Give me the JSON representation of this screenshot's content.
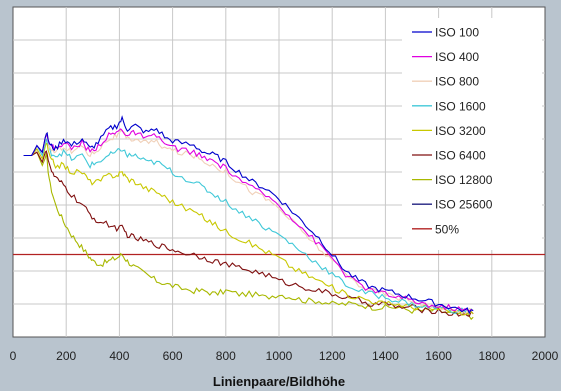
{
  "chart_data": {
    "type": "line",
    "title": "",
    "xlabel": "Linienpaare/Bildhöhe",
    "ylabel": "",
    "xlim": [
      0,
      2000
    ],
    "ylim": [
      0,
      1
    ],
    "x_ticks": [
      "0",
      "200",
      "400",
      "600",
      "800",
      "1000",
      "1200",
      "1400",
      "1600",
      "1800",
      "2000"
    ],
    "grid": true,
    "legend_position": "top-right",
    "reference_line": {
      "name": "50%",
      "y": 0.25,
      "color": "#b22222"
    },
    "series": [
      {
        "name": "ISO 100",
        "color": "#0000cc",
        "points": [
          [
            40,
            0.55
          ],
          [
            70,
            0.55
          ],
          [
            90,
            0.58
          ],
          [
            110,
            0.56
          ],
          [
            125,
            0.62
          ],
          [
            140,
            0.58
          ],
          [
            160,
            0.57
          ],
          [
            190,
            0.6
          ],
          [
            220,
            0.58
          ],
          [
            260,
            0.6
          ],
          [
            290,
            0.57
          ],
          [
            320,
            0.59
          ],
          [
            360,
            0.63
          ],
          [
            390,
            0.64
          ],
          [
            410,
            0.66
          ],
          [
            430,
            0.63
          ],
          [
            460,
            0.64
          ],
          [
            500,
            0.62
          ],
          [
            540,
            0.63
          ],
          [
            580,
            0.6
          ],
          [
            620,
            0.59
          ],
          [
            680,
            0.58
          ],
          [
            720,
            0.56
          ],
          [
            760,
            0.55
          ],
          [
            800,
            0.53
          ],
          [
            850,
            0.5
          ],
          [
            900,
            0.47
          ],
          [
            950,
            0.45
          ],
          [
            1000,
            0.42
          ],
          [
            1050,
            0.38
          ],
          [
            1100,
            0.34
          ],
          [
            1150,
            0.3
          ],
          [
            1200,
            0.25
          ],
          [
            1250,
            0.2
          ],
          [
            1300,
            0.17
          ],
          [
            1350,
            0.15
          ],
          [
            1400,
            0.14
          ],
          [
            1450,
            0.13
          ],
          [
            1500,
            0.12
          ],
          [
            1550,
            0.11
          ],
          [
            1600,
            0.1
          ],
          [
            1650,
            0.09
          ],
          [
            1700,
            0.08
          ],
          [
            1730,
            0.08
          ]
        ]
      },
      {
        "name": "ISO 400",
        "color": "#e000e0",
        "points": [
          [
            40,
            0.55
          ],
          [
            70,
            0.55
          ],
          [
            90,
            0.58
          ],
          [
            110,
            0.56
          ],
          [
            125,
            0.62
          ],
          [
            140,
            0.58
          ],
          [
            160,
            0.57
          ],
          [
            190,
            0.59
          ],
          [
            220,
            0.57
          ],
          [
            260,
            0.59
          ],
          [
            290,
            0.56
          ],
          [
            320,
            0.58
          ],
          [
            360,
            0.61
          ],
          [
            390,
            0.62
          ],
          [
            410,
            0.63
          ],
          [
            430,
            0.61
          ],
          [
            460,
            0.62
          ],
          [
            500,
            0.6
          ],
          [
            540,
            0.61
          ],
          [
            580,
            0.58
          ],
          [
            620,
            0.57
          ],
          [
            680,
            0.56
          ],
          [
            720,
            0.54
          ],
          [
            760,
            0.53
          ],
          [
            800,
            0.51
          ],
          [
            850,
            0.48
          ],
          [
            900,
            0.45
          ],
          [
            950,
            0.43
          ],
          [
            1000,
            0.4
          ],
          [
            1050,
            0.36
          ],
          [
            1100,
            0.32
          ],
          [
            1150,
            0.28
          ],
          [
            1200,
            0.24
          ],
          [
            1250,
            0.19
          ],
          [
            1300,
            0.16
          ],
          [
            1350,
            0.14
          ],
          [
            1400,
            0.13
          ],
          [
            1450,
            0.12
          ],
          [
            1500,
            0.11
          ],
          [
            1550,
            0.1
          ],
          [
            1600,
            0.09
          ],
          [
            1650,
            0.09
          ],
          [
            1700,
            0.08
          ],
          [
            1730,
            0.08
          ]
        ]
      },
      {
        "name": "ISO 800",
        "color": "#f0d0b8",
        "points": [
          [
            40,
            0.55
          ],
          [
            70,
            0.55
          ],
          [
            90,
            0.58
          ],
          [
            110,
            0.56
          ],
          [
            125,
            0.61
          ],
          [
            140,
            0.57
          ],
          [
            160,
            0.56
          ],
          [
            190,
            0.58
          ],
          [
            220,
            0.56
          ],
          [
            260,
            0.58
          ],
          [
            290,
            0.55
          ],
          [
            320,
            0.57
          ],
          [
            360,
            0.6
          ],
          [
            390,
            0.61
          ],
          [
            410,
            0.62
          ],
          [
            430,
            0.6
          ],
          [
            460,
            0.6
          ],
          [
            500,
            0.59
          ],
          [
            540,
            0.59
          ],
          [
            580,
            0.57
          ],
          [
            620,
            0.56
          ],
          [
            680,
            0.55
          ],
          [
            720,
            0.53
          ],
          [
            760,
            0.52
          ],
          [
            800,
            0.5
          ],
          [
            850,
            0.47
          ],
          [
            900,
            0.44
          ],
          [
            950,
            0.42
          ],
          [
            1000,
            0.39
          ],
          [
            1050,
            0.35
          ],
          [
            1100,
            0.31
          ],
          [
            1150,
            0.27
          ],
          [
            1200,
            0.23
          ],
          [
            1250,
            0.19
          ],
          [
            1300,
            0.16
          ],
          [
            1350,
            0.14
          ],
          [
            1400,
            0.13
          ],
          [
            1450,
            0.12
          ],
          [
            1500,
            0.11
          ],
          [
            1550,
            0.1
          ],
          [
            1600,
            0.09
          ],
          [
            1650,
            0.08
          ],
          [
            1700,
            0.08
          ],
          [
            1730,
            0.08
          ]
        ]
      },
      {
        "name": "ISO 1600",
        "color": "#40c8d8",
        "points": [
          [
            40,
            0.55
          ],
          [
            70,
            0.55
          ],
          [
            90,
            0.58
          ],
          [
            110,
            0.55
          ],
          [
            125,
            0.6
          ],
          [
            140,
            0.56
          ],
          [
            160,
            0.55
          ],
          [
            190,
            0.56
          ],
          [
            220,
            0.54
          ],
          [
            260,
            0.55
          ],
          [
            290,
            0.52
          ],
          [
            320,
            0.53
          ],
          [
            360,
            0.55
          ],
          [
            390,
            0.56
          ],
          [
            410,
            0.57
          ],
          [
            430,
            0.55
          ],
          [
            460,
            0.55
          ],
          [
            500,
            0.53
          ],
          [
            540,
            0.53
          ],
          [
            580,
            0.51
          ],
          [
            620,
            0.49
          ],
          [
            680,
            0.47
          ],
          [
            720,
            0.45
          ],
          [
            760,
            0.43
          ],
          [
            800,
            0.41
          ],
          [
            850,
            0.38
          ],
          [
            900,
            0.36
          ],
          [
            950,
            0.33
          ],
          [
            1000,
            0.31
          ],
          [
            1050,
            0.28
          ],
          [
            1100,
            0.25
          ],
          [
            1150,
            0.22
          ],
          [
            1200,
            0.19
          ],
          [
            1250,
            0.16
          ],
          [
            1300,
            0.14
          ],
          [
            1350,
            0.13
          ],
          [
            1400,
            0.12
          ],
          [
            1450,
            0.11
          ],
          [
            1500,
            0.1
          ],
          [
            1550,
            0.09
          ],
          [
            1600,
            0.09
          ],
          [
            1650,
            0.08
          ],
          [
            1700,
            0.08
          ],
          [
            1730,
            0.08
          ]
        ]
      },
      {
        "name": "ISO 3200",
        "color": "#c8c800",
        "points": [
          [
            40,
            0.55
          ],
          [
            70,
            0.55
          ],
          [
            90,
            0.57
          ],
          [
            110,
            0.54
          ],
          [
            125,
            0.59
          ],
          [
            140,
            0.54
          ],
          [
            160,
            0.52
          ],
          [
            190,
            0.52
          ],
          [
            220,
            0.5
          ],
          [
            260,
            0.5
          ],
          [
            290,
            0.47
          ],
          [
            320,
            0.47
          ],
          [
            360,
            0.49
          ],
          [
            390,
            0.49
          ],
          [
            410,
            0.5
          ],
          [
            430,
            0.48
          ],
          [
            460,
            0.47
          ],
          [
            500,
            0.45
          ],
          [
            540,
            0.44
          ],
          [
            580,
            0.42
          ],
          [
            620,
            0.4
          ],
          [
            680,
            0.38
          ],
          [
            720,
            0.36
          ],
          [
            760,
            0.34
          ],
          [
            800,
            0.32
          ],
          [
            850,
            0.3
          ],
          [
            900,
            0.28
          ],
          [
            950,
            0.26
          ],
          [
            1000,
            0.24
          ],
          [
            1050,
            0.21
          ],
          [
            1100,
            0.19
          ],
          [
            1150,
            0.17
          ],
          [
            1200,
            0.15
          ],
          [
            1250,
            0.13
          ],
          [
            1300,
            0.12
          ],
          [
            1350,
            0.11
          ],
          [
            1400,
            0.1
          ],
          [
            1450,
            0.1
          ],
          [
            1500,
            0.09
          ],
          [
            1550,
            0.09
          ],
          [
            1600,
            0.08
          ],
          [
            1650,
            0.08
          ],
          [
            1700,
            0.07
          ],
          [
            1730,
            0.07
          ]
        ]
      },
      {
        "name": "ISO 6400",
        "color": "#801010",
        "points": [
          [
            40,
            0.55
          ],
          [
            70,
            0.55
          ],
          [
            90,
            0.56
          ],
          [
            110,
            0.53
          ],
          [
            125,
            0.57
          ],
          [
            140,
            0.51
          ],
          [
            160,
            0.48
          ],
          [
            190,
            0.46
          ],
          [
            220,
            0.43
          ],
          [
            260,
            0.4
          ],
          [
            290,
            0.37
          ],
          [
            320,
            0.35
          ],
          [
            360,
            0.34
          ],
          [
            390,
            0.33
          ],
          [
            410,
            0.33
          ],
          [
            430,
            0.31
          ],
          [
            460,
            0.3
          ],
          [
            500,
            0.29
          ],
          [
            540,
            0.28
          ],
          [
            580,
            0.27
          ],
          [
            620,
            0.26
          ],
          [
            680,
            0.25
          ],
          [
            720,
            0.24
          ],
          [
            760,
            0.23
          ],
          [
            800,
            0.22
          ],
          [
            850,
            0.21
          ],
          [
            900,
            0.2
          ],
          [
            950,
            0.19
          ],
          [
            1000,
            0.17
          ],
          [
            1050,
            0.16
          ],
          [
            1100,
            0.15
          ],
          [
            1150,
            0.14
          ],
          [
            1200,
            0.13
          ],
          [
            1250,
            0.12
          ],
          [
            1300,
            0.11
          ],
          [
            1350,
            0.1
          ],
          [
            1400,
            0.1
          ],
          [
            1450,
            0.09
          ],
          [
            1500,
            0.09
          ],
          [
            1550,
            0.08
          ],
          [
            1600,
            0.08
          ],
          [
            1650,
            0.07
          ],
          [
            1700,
            0.07
          ],
          [
            1730,
            0.07
          ]
        ]
      },
      {
        "name": "ISO 12800",
        "color": "#a8b800",
        "points": [
          [
            40,
            0.55
          ],
          [
            70,
            0.55
          ],
          [
            90,
            0.56
          ],
          [
            110,
            0.52
          ],
          [
            125,
            0.55
          ],
          [
            140,
            0.46
          ],
          [
            160,
            0.4
          ],
          [
            190,
            0.35
          ],
          [
            220,
            0.31
          ],
          [
            250,
            0.28
          ],
          [
            280,
            0.25
          ],
          [
            300,
            0.23
          ],
          [
            330,
            0.22
          ],
          [
            360,
            0.23
          ],
          [
            390,
            0.24
          ],
          [
            410,
            0.25
          ],
          [
            430,
            0.23
          ],
          [
            460,
            0.21
          ],
          [
            500,
            0.19
          ],
          [
            540,
            0.17
          ],
          [
            580,
            0.16
          ],
          [
            620,
            0.15
          ],
          [
            680,
            0.14
          ],
          [
            720,
            0.14
          ],
          [
            760,
            0.13
          ],
          [
            800,
            0.14
          ],
          [
            850,
            0.13
          ],
          [
            900,
            0.13
          ],
          [
            950,
            0.12
          ],
          [
            1000,
            0.13
          ],
          [
            1050,
            0.12
          ],
          [
            1100,
            0.11
          ],
          [
            1150,
            0.11
          ],
          [
            1200,
            0.1
          ],
          [
            1250,
            0.1
          ],
          [
            1300,
            0.1
          ],
          [
            1350,
            0.09
          ],
          [
            1400,
            0.09
          ],
          [
            1450,
            0.09
          ],
          [
            1500,
            0.08
          ],
          [
            1550,
            0.08
          ],
          [
            1600,
            0.08
          ],
          [
            1650,
            0.07
          ],
          [
            1700,
            0.07
          ],
          [
            1730,
            0.06
          ]
        ]
      },
      {
        "name": "ISO 25600",
        "color": "#202080",
        "points": []
      },
      {
        "name": "50%",
        "color": "#b22222",
        "points": []
      }
    ]
  }
}
